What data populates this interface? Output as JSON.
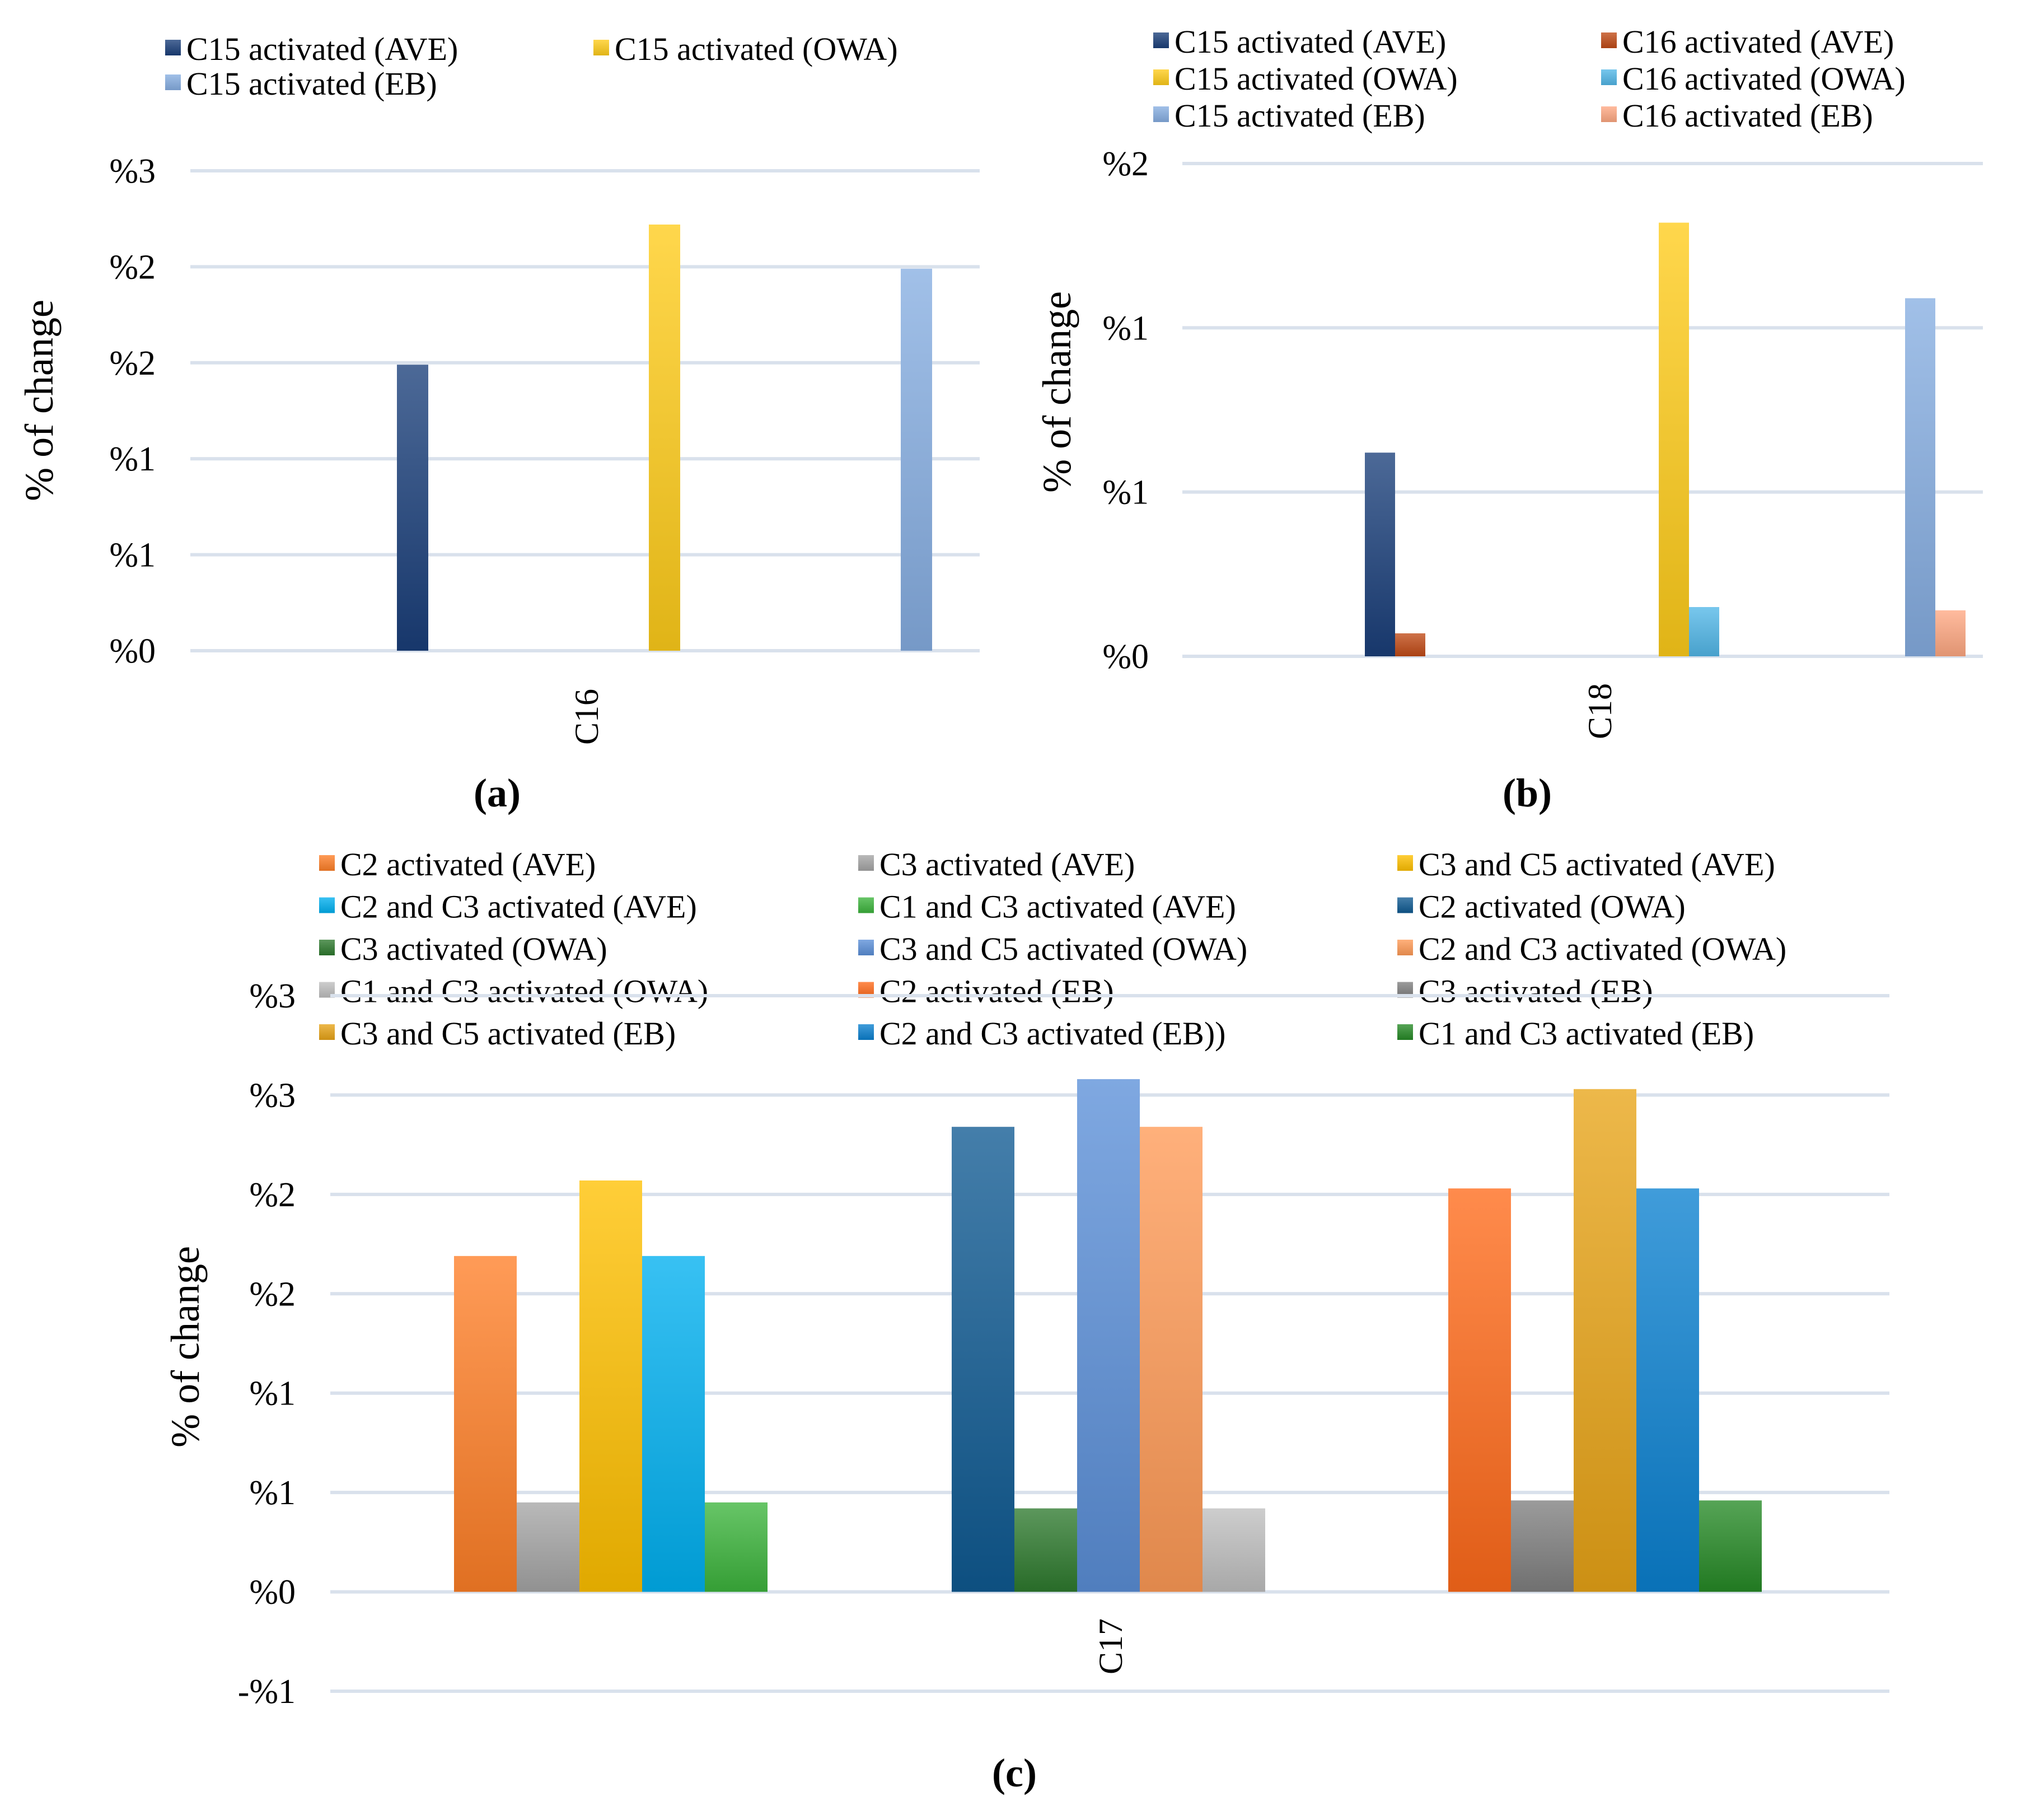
{
  "figure_labels": {
    "a": "(a)",
    "b": "(b)",
    "c": "(c)"
  },
  "colors": {
    "c15_ave": "#1a3f7a",
    "c15_owa": "#ffcc1a",
    "c15_eb": "#86aee2",
    "c16_ave": "#c04a16",
    "c16_owa": "#52b7e8",
    "c16_eb": "#ffa882",
    "gridline": "#d9e1ec"
  },
  "chart_data": [
    {
      "id": "a",
      "type": "bar",
      "ylabel": "% of change",
      "xlabel": "",
      "categories": [
        "C16"
      ],
      "ylim": [
        0,
        2.5
      ],
      "yticks": [
        0,
        0.5,
        1.0,
        1.5,
        2.0,
        2.5
      ],
      "ytick_labels": [
        "%0",
        "%1",
        "%1",
        "%2",
        "%2",
        "%3"
      ],
      "bar_groups": [
        {
          "series": "C15 activated (AVE)",
          "value": 1.49,
          "color": "#1a3f7a"
        },
        {
          "series": "C15 activated (OWA)",
          "value": 2.22,
          "color": "#ffcc1a"
        },
        {
          "series": "C15 activated (EB)",
          "value": 1.99,
          "color": "#86aee2"
        }
      ],
      "legend": [
        {
          "label": "C15 activated (AVE)",
          "color": "#1a3f7a"
        },
        {
          "label": "C15 activated (OWA)",
          "color": "#ffcc1a"
        },
        {
          "label": "C15 activated (EB)",
          "color": "#86aee2"
        }
      ]
    },
    {
      "id": "b",
      "type": "bar",
      "ylabel": "% of change",
      "xlabel": "",
      "categories": [
        "C18"
      ],
      "ylim": [
        0,
        1.5
      ],
      "yticks": [
        0,
        0.5,
        1.0,
        1.5
      ],
      "ytick_labels": [
        "%0",
        "%1",
        "%1",
        "%2"
      ],
      "bar_groups": [
        {
          "series": [
            "C15 activated (AVE)",
            "C16 activated (AVE)"
          ],
          "values": [
            0.62,
            0.07
          ],
          "colors": [
            "#1a3f7a",
            "#c04a16"
          ]
        },
        {
          "series": [
            "C15 activated (OWA)",
            "C16 activated (OWA)"
          ],
          "values": [
            1.32,
            0.15
          ],
          "colors": [
            "#ffcc1a",
            "#52b7e8"
          ]
        },
        {
          "series": [
            "C15 activated (EB)",
            "C16 activated (EB)"
          ],
          "values": [
            1.09,
            0.14
          ],
          "colors": [
            "#86aee2",
            "#ffa882"
          ]
        }
      ],
      "legend": [
        {
          "label": "C15 activated (AVE)",
          "color": "#1a3f7a"
        },
        {
          "label": "C16 activated (AVE)",
          "color": "#c04a16"
        },
        {
          "label": "C15 activated (OWA)",
          "color": "#ffcc1a"
        },
        {
          "label": "C16 activated (OWA)",
          "color": "#52b7e8"
        },
        {
          "label": "C15 activated (EB)",
          "color": "#86aee2"
        },
        {
          "label": "C16 activated (EB)",
          "color": "#ffa882"
        }
      ]
    },
    {
      "id": "c",
      "type": "bar",
      "ylabel": "% of change",
      "xlabel": "",
      "categories": [
        "C17"
      ],
      "ylim": [
        -0.5,
        3.0
      ],
      "yticks": [
        -0.5,
        0,
        0.5,
        1.0,
        1.5,
        2.0,
        2.5,
        3.0
      ],
      "ytick_labels": [
        "-%1",
        "%0",
        "%1",
        "%1",
        "%2",
        "%2",
        "%3",
        "%3"
      ],
      "bar_groups": [
        {
          "name": "AVE",
          "series": [
            "C2 activated (AVE)",
            "C3 activated (AVE)",
            "C3 and C5 activated (AVE)",
            "C2 and C3 activated (AVE)",
            "C1 and C3 activated (AVE)"
          ],
          "values": [
            1.69,
            0.45,
            2.07,
            1.69,
            0.45
          ],
          "colors": [
            "#ff7f27",
            "#a5a5a5",
            "#ffc000",
            "#00b0f0",
            "#3cb43c"
          ]
        },
        {
          "name": "OWA",
          "series": [
            "C2 activated (OWA)",
            "C3 activated (OWA)",
            "C3 and C5 activated (OWA)",
            "C2 and C3 activated (OWA)",
            "C1 and C3 activated (OWA)"
          ],
          "values": [
            2.34,
            0.42,
            2.58,
            2.34,
            0.42
          ],
          "colors": [
            "#0f5a92",
            "#2e7a2e",
            "#5b8fd8",
            "#ff9a56",
            "#bfbfbf"
          ]
        },
        {
          "name": "EB",
          "series": [
            "C2 activated (EB)",
            "C3 activated (EB)",
            "C3 and C5 activated (EB)",
            "C2 and C3 activated (EB))",
            "C1 and C3 activated (EB)"
          ],
          "values": [
            2.03,
            0.46,
            2.53,
            2.03,
            0.46
          ],
          "colors": [
            "#ff6a1a",
            "#7f7f7f",
            "#e8a417",
            "#0a80d0",
            "#268a26"
          ]
        }
      ],
      "legend": [
        {
          "label": "C2 activated (AVE)",
          "color": "#ff7f27"
        },
        {
          "label": "C3 activated (AVE)",
          "color": "#a5a5a5"
        },
        {
          "label": "C3 and C5 activated (AVE)",
          "color": "#ffc000"
        },
        {
          "label": "C2 and C3 activated (AVE)",
          "color": "#00b0f0"
        },
        {
          "label": "C1 and C3 activated (AVE)",
          "color": "#3cb43c"
        },
        {
          "label": "C2 activated (OWA)",
          "color": "#0f5a92"
        },
        {
          "label": "C3 activated (OWA)",
          "color": "#2e7a2e"
        },
        {
          "label": "C3 and C5 activated (OWA)",
          "color": "#5b8fd8"
        },
        {
          "label": "C2 and C3 activated (OWA)",
          "color": "#ff9a56"
        },
        {
          "label": "C1 and C3 activated (OWA)",
          "color": "#bfbfbf"
        },
        {
          "label": "C2 activated (EB)",
          "color": "#ff6a1a"
        },
        {
          "label": "C3 activated (EB)",
          "color": "#7f7f7f"
        },
        {
          "label": "C3 and C5 activated (EB)",
          "color": "#e8a417"
        },
        {
          "label": "C2 and C3 activated (EB))",
          "color": "#0a80d0"
        },
        {
          "label": "C1 and C3 activated (EB)",
          "color": "#268a26"
        }
      ]
    }
  ]
}
